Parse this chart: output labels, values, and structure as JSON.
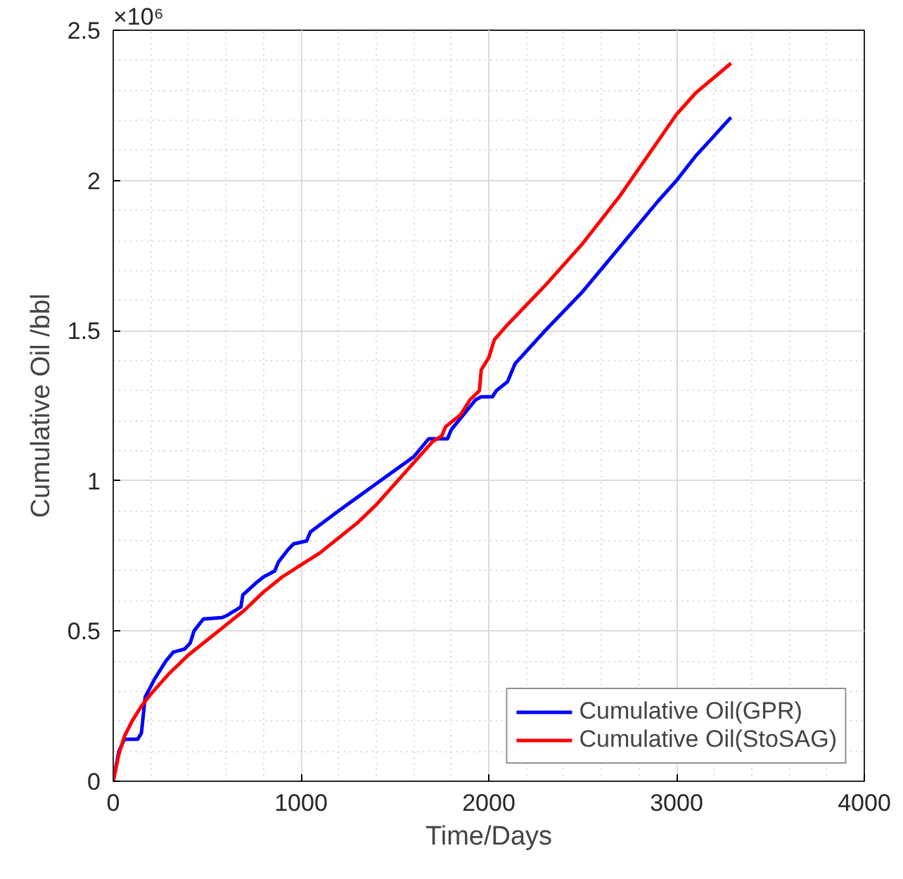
{
  "chart_data": {
    "type": "line",
    "xlabel": "Time/Days",
    "ylabel": "Cumulative Oil /bbl",
    "annotations": [
      "×10⁶"
    ],
    "xlim": [
      0,
      4000
    ],
    "xticks": [
      0,
      1000,
      2000,
      3000,
      4000
    ],
    "ylim": [
      0,
      2.5
    ],
    "yticks": [
      0,
      0.5,
      1,
      1.5,
      2,
      2.5
    ],
    "grid": true,
    "legend": "bottom right",
    "line_style": "solid",
    "marker": "none",
    "series": [
      {
        "name": "Cumulative Oil(GPR)",
        "color": "#0000ff",
        "x": [
          0,
          30,
          60,
          130,
          150,
          170,
          220,
          280,
          320,
          380,
          410,
          430,
          480,
          580,
          600,
          680,
          690,
          760,
          800,
          860,
          880,
          930,
          960,
          1030,
          1050,
          1200,
          1400,
          1600,
          1680,
          1780,
          1800,
          1930,
          1960,
          2020,
          2040,
          2100,
          2140,
          2300,
          2500,
          2700,
          2900,
          3000,
          3100,
          3290
        ],
        "values": [
          0,
          0.1,
          0.14,
          0.14,
          0.16,
          0.28,
          0.34,
          0.4,
          0.43,
          0.44,
          0.46,
          0.5,
          0.54,
          0.545,
          0.55,
          0.58,
          0.62,
          0.66,
          0.68,
          0.7,
          0.73,
          0.77,
          0.79,
          0.8,
          0.83,
          0.9,
          0.99,
          1.08,
          1.14,
          1.14,
          1.17,
          1.27,
          1.28,
          1.28,
          1.3,
          1.33,
          1.39,
          1.5,
          1.63,
          1.78,
          1.93,
          2.0,
          2.08,
          2.21
        ]
      },
      {
        "name": "Cumulative Oil(StoSAG)",
        "color": "#ff0000",
        "x": [
          0,
          30,
          60,
          100,
          150,
          200,
          300,
          400,
          500,
          600,
          700,
          800,
          900,
          1000,
          1100,
          1200,
          1300,
          1400,
          1500,
          1600,
          1700,
          1750,
          1770,
          1850,
          1900,
          1950,
          1960,
          2000,
          2030,
          2100,
          2300,
          2500,
          2700,
          2900,
          3000,
          3100,
          3290
        ],
        "values": [
          0,
          0.09,
          0.15,
          0.2,
          0.25,
          0.29,
          0.36,
          0.42,
          0.47,
          0.52,
          0.57,
          0.63,
          0.68,
          0.72,
          0.76,
          0.81,
          0.86,
          0.92,
          0.99,
          1.06,
          1.13,
          1.15,
          1.18,
          1.22,
          1.27,
          1.3,
          1.37,
          1.41,
          1.47,
          1.52,
          1.65,
          1.79,
          1.95,
          2.13,
          2.22,
          2.29,
          2.39
        ]
      }
    ]
  }
}
